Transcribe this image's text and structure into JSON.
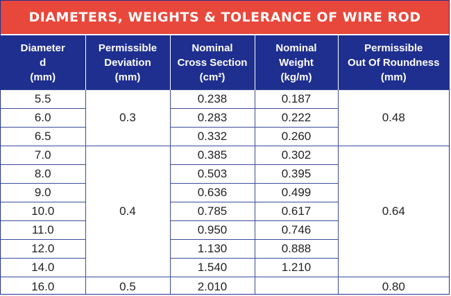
{
  "title": "DIAMETERS, WEIGHTS & TOLERANCE OF WIRE ROD",
  "headers": [
    [
      "Diameter",
      "d",
      "(mm)"
    ],
    [
      "Permissible",
      "Deviation",
      "(mm)"
    ],
    [
      "Nominal",
      "Cross Section",
      "(cm²)"
    ],
    [
      "Nominal",
      "Weight",
      "(kg/m)"
    ],
    [
      "Permissible",
      "Out Of Roundness",
      "(mm)"
    ]
  ],
  "rows": [
    {
      "diameter": "5.5",
      "cross_section": "0.238",
      "weight": "0.187"
    },
    {
      "diameter": "6.0",
      "cross_section": "0.283",
      "weight": "0.222"
    },
    {
      "diameter": "6.5",
      "cross_section": "0.332",
      "weight": "0.260"
    },
    {
      "diameter": "7.0",
      "cross_section": "0.385",
      "weight": "0.302"
    },
    {
      "diameter": "8.0",
      "cross_section": "0.503",
      "weight": "0.395"
    },
    {
      "diameter": "9.0",
      "cross_section": "0.636",
      "weight": "0.499"
    },
    {
      "diameter": "10.0",
      "cross_section": "0.785",
      "weight": "0.617"
    },
    {
      "diameter": "11.0",
      "cross_section": "0.950",
      "weight": "0.746"
    },
    {
      "diameter": "12.0",
      "cross_section": "1.130",
      "weight": "0.888"
    },
    {
      "diameter": "14.0",
      "cross_section": "1.540",
      "weight": "1.210"
    },
    {
      "diameter": "16.0",
      "cross_section": "2.010",
      "weight": ""
    }
  ],
  "groups": [
    {
      "deviation": "0.3",
      "out_of_roundness": "0.48"
    },
    {
      "deviation": "0.4",
      "out_of_roundness": "0.64"
    },
    {
      "deviation": "0.5",
      "out_of_roundness": "0.80"
    }
  ],
  "colors": {
    "title_bg": "#e8473b",
    "header_bg": "#1f2f8f",
    "grid": "#3a4a9a"
  }
}
